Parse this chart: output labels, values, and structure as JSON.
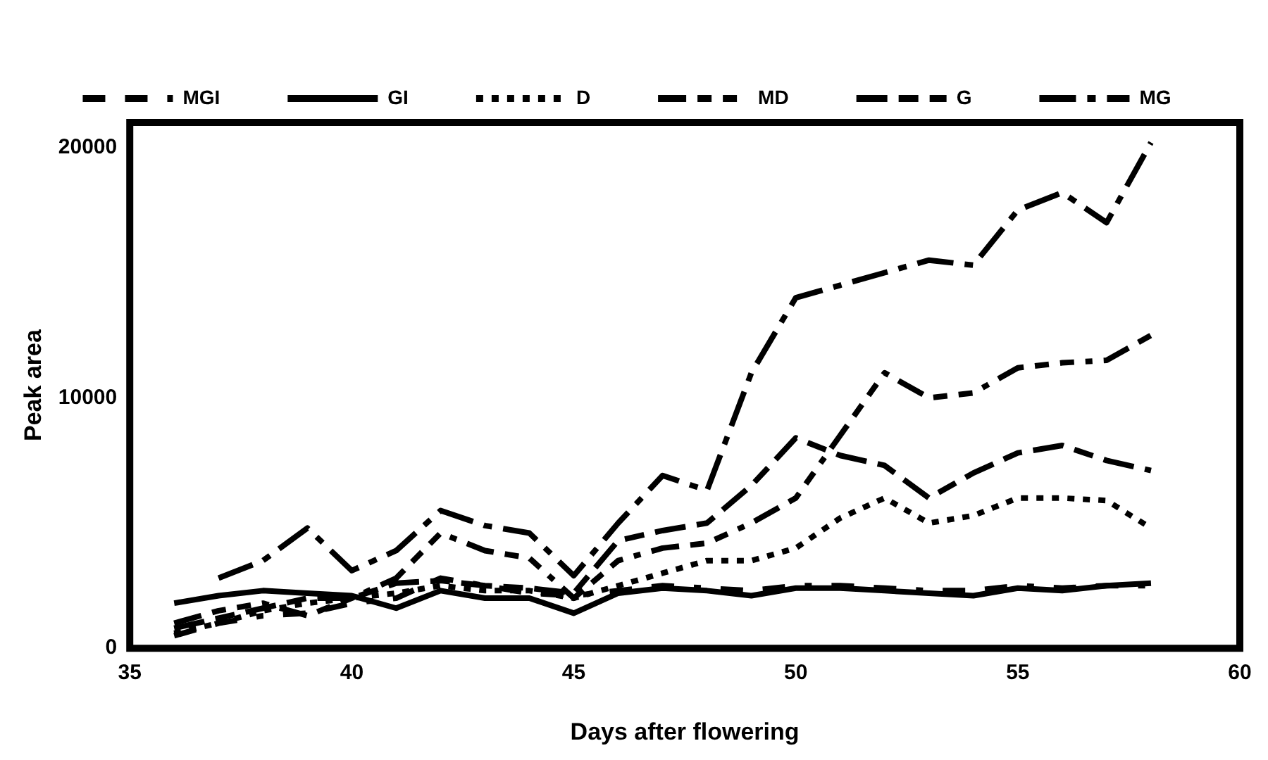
{
  "chart_data": {
    "type": "line",
    "xlabel": "Days after flowering",
    "ylabel": "Peak area",
    "xlim": [
      35,
      60
    ],
    "xticks": [
      35,
      40,
      45,
      50,
      55,
      60
    ],
    "ylim": [
      0,
      21000
    ],
    "yticks": [
      0,
      10000,
      20000
    ],
    "grid": false,
    "legend": "top",
    "marker": "none",
    "x": [
      36,
      37,
      38,
      39,
      40,
      41,
      42,
      43,
      44,
      45,
      46,
      47,
      48,
      49,
      50,
      51,
      52,
      53,
      54,
      55,
      56,
      57,
      58
    ],
    "series": [
      {
        "name": "MGI",
        "color": "#000000",
        "line_style": "dashdashdot",
        "values": [
          500,
          1000,
          1300,
          1400,
          1800,
          2000,
          2800,
          2500,
          2200,
          2100,
          2300,
          2500,
          2400,
          2300,
          2500,
          2500,
          2400,
          2300,
          2300,
          2500,
          2400,
          2500,
          2500
        ]
      },
      {
        "name": "GI",
        "color": "#000000",
        "line_style": "solid",
        "values": [
          1800,
          2100,
          2300,
          2200,
          2100,
          1600,
          2300,
          2000,
          2000,
          1400,
          2200,
          2400,
          2300,
          2100,
          2400,
          2400,
          2300,
          2200,
          2100,
          2400,
          2300,
          2500,
          2600
        ]
      },
      {
        "name": "D",
        "color": "#000000",
        "line_style": "dotted",
        "values": [
          600,
          1000,
          1500,
          1800,
          2000,
          2200,
          2500,
          2300,
          2300,
          2000,
          2500,
          3000,
          3500,
          3500,
          4000,
          5200,
          6000,
          5000,
          5300,
          6000,
          6000,
          5900,
          4800
        ]
      },
      {
        "name": "MD",
        "color": "#000000",
        "line_style": "dashdotdot",
        "values": [
          1000,
          1500,
          1800,
          1300,
          2000,
          2800,
          4600,
          3900,
          3600,
          2000,
          3500,
          4000,
          4200,
          5000,
          6000,
          8500,
          11000,
          10000,
          10200,
          11200,
          11400,
          11500,
          12500
        ]
      },
      {
        "name": "G",
        "color": "#000000",
        "line_style": "dashed",
        "values": [
          800,
          1200,
          1600,
          2000,
          2000,
          2600,
          2700,
          2500,
          2400,
          2200,
          4300,
          4700,
          5000,
          6500,
          8400,
          7700,
          7300,
          6000,
          7000,
          7800,
          8100,
          7500,
          7100
        ]
      },
      {
        "name": "MG",
        "color": "#000000",
        "line_style": "dashdot",
        "values": [
          null,
          2800,
          3500,
          4800,
          3100,
          3900,
          5500,
          4900,
          4600,
          2900,
          5000,
          6900,
          6300,
          11000,
          14000,
          14500,
          15000,
          15500,
          15300,
          17500,
          18200,
          17000,
          20200
        ]
      }
    ]
  }
}
